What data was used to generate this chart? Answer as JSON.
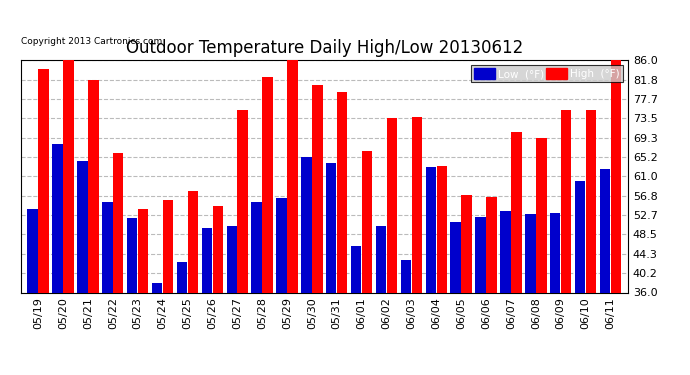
{
  "title": "Outdoor Temperature Daily High/Low 20130612",
  "copyright": "Copyright 2013 Cartronics.com",
  "yticks": [
    36.0,
    40.2,
    44.3,
    48.5,
    52.7,
    56.8,
    61.0,
    65.2,
    69.3,
    73.5,
    77.7,
    81.8,
    86.0
  ],
  "ylim": [
    36.0,
    86.0
  ],
  "dates": [
    "05/19",
    "05/20",
    "05/21",
    "05/22",
    "05/23",
    "05/24",
    "05/25",
    "05/26",
    "05/27",
    "05/28",
    "05/29",
    "05/30",
    "05/31",
    "06/01",
    "06/02",
    "06/03",
    "06/04",
    "06/05",
    "06/06",
    "06/07",
    "06/08",
    "06/09",
    "06/10",
    "06/11"
  ],
  "highs": [
    84.0,
    86.0,
    81.8,
    66.0,
    54.0,
    55.8,
    57.9,
    54.5,
    75.2,
    82.4,
    86.2,
    80.6,
    79.2,
    66.4,
    73.5,
    73.8,
    63.1,
    57.0,
    56.6,
    70.5,
    69.3,
    75.2,
    75.2,
    86.0
  ],
  "lows": [
    54.0,
    68.0,
    64.2,
    55.4,
    52.0,
    38.0,
    42.5,
    49.9,
    50.4,
    55.4,
    56.4,
    65.2,
    63.8,
    46.0,
    50.4,
    43.0,
    63.0,
    51.2,
    52.3,
    53.6,
    52.9,
    53.0,
    59.9,
    62.6
  ],
  "high_color": "#ff0000",
  "low_color": "#0000cc",
  "bg_color": "#ffffff",
  "plot_bg_color": "#ffffff",
  "grid_color": "#bbbbbb",
  "title_fontsize": 12,
  "tick_fontsize": 8,
  "legend_low_label": "Low  (°F)",
  "legend_high_label": "High  (°F)"
}
